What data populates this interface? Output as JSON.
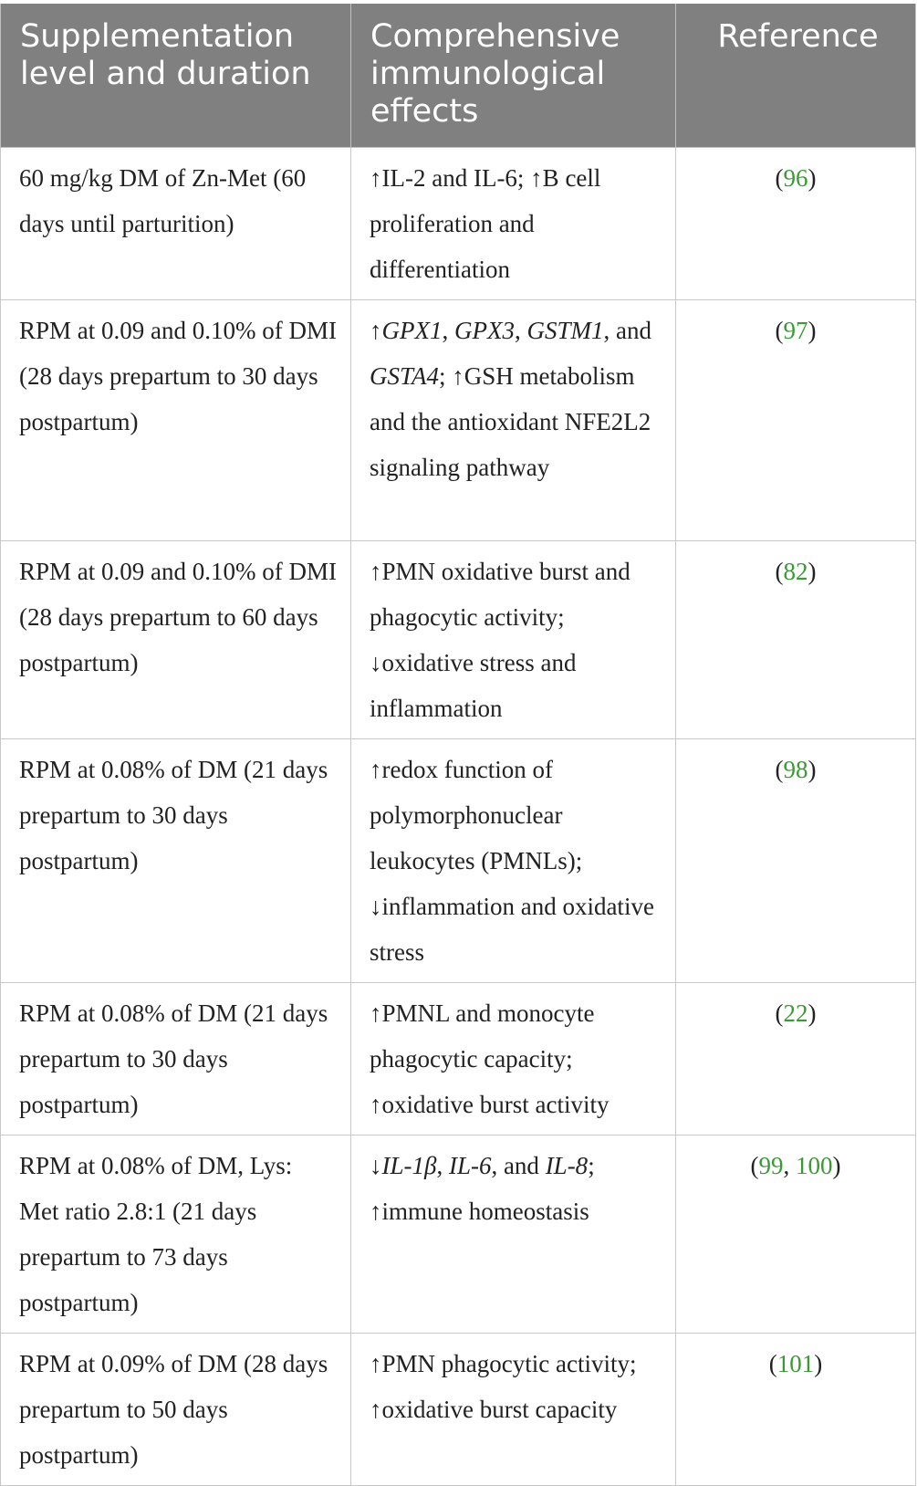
{
  "table": {
    "headers": {
      "col1": "Supplementation level and duration",
      "col2": "Comprehensive immunological effects",
      "col3": "Reference"
    },
    "rows": [
      {
        "supplementation": "60 mg/kg DM of Zn-Met (60 days until parturition)",
        "effects": "↑IL-2 and IL-6; ↑B cell proliferation and differentiation",
        "refs": [
          "96"
        ]
      },
      {
        "supplementation": "RPM at 0.09 and 0.10% of DMI (28 days prepartum to 30 days postpartum)",
        "effects_parts": [
          "↑",
          "GPX1",
          ", ",
          "GPX3",
          ", ",
          "GSTM1",
          ", and ",
          "GSTA4",
          "; ↑GSH metabolism and the antioxidant NFE2L2 signaling pathway"
        ],
        "refs": [
          "97"
        ]
      },
      {
        "supplementation": "RPM at 0.09 and 0.10% of DMI (28 days prepartum to 60 days postpartum)",
        "effects": "↑PMN oxidative burst and phagocytic activity; ↓oxidative stress and inflammation",
        "refs": [
          "82"
        ]
      },
      {
        "supplementation": "RPM at 0.08% of DM (21 days prepartum to 30 days postpartum)",
        "effects": "↑redox function of polymorphonuclear leukocytes (PMNLs); ↓inflammation and oxidative stress",
        "refs": [
          "98"
        ]
      },
      {
        "supplementation": "RPM at 0.08% of DM (21 days prepartum to 30 days postpartum)",
        "effects": "↑PMNL and monocyte phagocytic capacity; ↑oxidative burst activity",
        "refs": [
          "22"
        ]
      },
      {
        "supplementation": "RPM at 0.08% of DM, Lys: Met ratio 2.8:1 (21 days prepartum to 73 days postpartum)",
        "effects_parts": [
          "↓",
          "IL-1β",
          ", ",
          "IL-6",
          ", and ",
          "IL-8",
          "; ↑immune homeostasis"
        ],
        "refs": [
          "99",
          "100"
        ]
      },
      {
        "supplementation": "RPM at 0.09% of DM (28 days prepartum to 50 days postpartum)",
        "effects": "↑PMN phagocytic activity; ↑oxidative burst capacity",
        "refs": [
          "101"
        ]
      }
    ],
    "colors": {
      "header_bg": "#808080",
      "header_text": "#ffffff",
      "link": "#3a9a34",
      "border": "#c8c8c8"
    }
  }
}
